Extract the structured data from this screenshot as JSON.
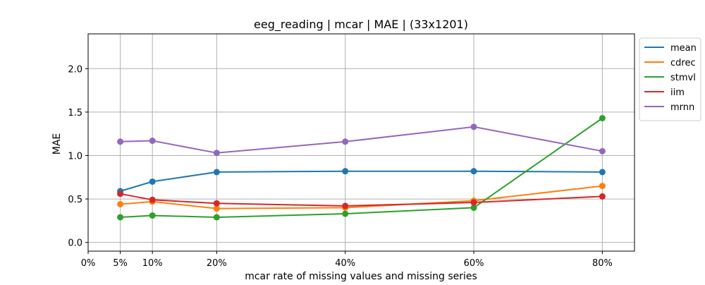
{
  "chart_data": {
    "type": "line",
    "title": "eeg_reading | mcar | MAE | (33x1201)",
    "xlabel": "mcar rate of missing values and missing series",
    "ylabel": "MAE",
    "x": [
      5,
      10,
      20,
      40,
      60,
      80
    ],
    "xlim": [
      0,
      85
    ],
    "ylim": [
      -0.1,
      2.4
    ],
    "x_ticks": [
      {
        "value": 0,
        "label": "0%"
      },
      {
        "value": 5,
        "label": "5%"
      },
      {
        "value": 10,
        "label": "10%"
      },
      {
        "value": 20,
        "label": "20%"
      },
      {
        "value": 40,
        "label": "40%"
      },
      {
        "value": 60,
        "label": "60%"
      },
      {
        "value": 80,
        "label": "80%"
      }
    ],
    "y_ticks": [
      {
        "value": 0.0,
        "label": "0.0"
      },
      {
        "value": 0.5,
        "label": "0.5"
      },
      {
        "value": 1.0,
        "label": "1.0"
      },
      {
        "value": 1.5,
        "label": "1.5"
      },
      {
        "value": 2.0,
        "label": "2.0"
      }
    ],
    "grid": true,
    "legend_position": "outside-right",
    "markers": "circle",
    "series": [
      {
        "name": "mean",
        "color": "#1f77b4",
        "values": [
          0.59,
          0.7,
          0.81,
          0.82,
          0.82,
          0.81
        ]
      },
      {
        "name": "cdrec",
        "color": "#ff7f0e",
        "values": [
          0.44,
          0.47,
          0.39,
          0.4,
          0.48,
          0.65
        ]
      },
      {
        "name": "stmvl",
        "color": "#2ca02c",
        "values": [
          0.29,
          0.31,
          0.29,
          0.33,
          0.4,
          1.43
        ]
      },
      {
        "name": "iim",
        "color": "#d62728",
        "values": [
          0.56,
          0.49,
          0.45,
          0.42,
          0.46,
          0.53
        ]
      },
      {
        "name": "mrnn",
        "color": "#9467bd",
        "values": [
          1.16,
          1.17,
          1.03,
          1.16,
          1.33,
          1.05
        ]
      }
    ]
  }
}
